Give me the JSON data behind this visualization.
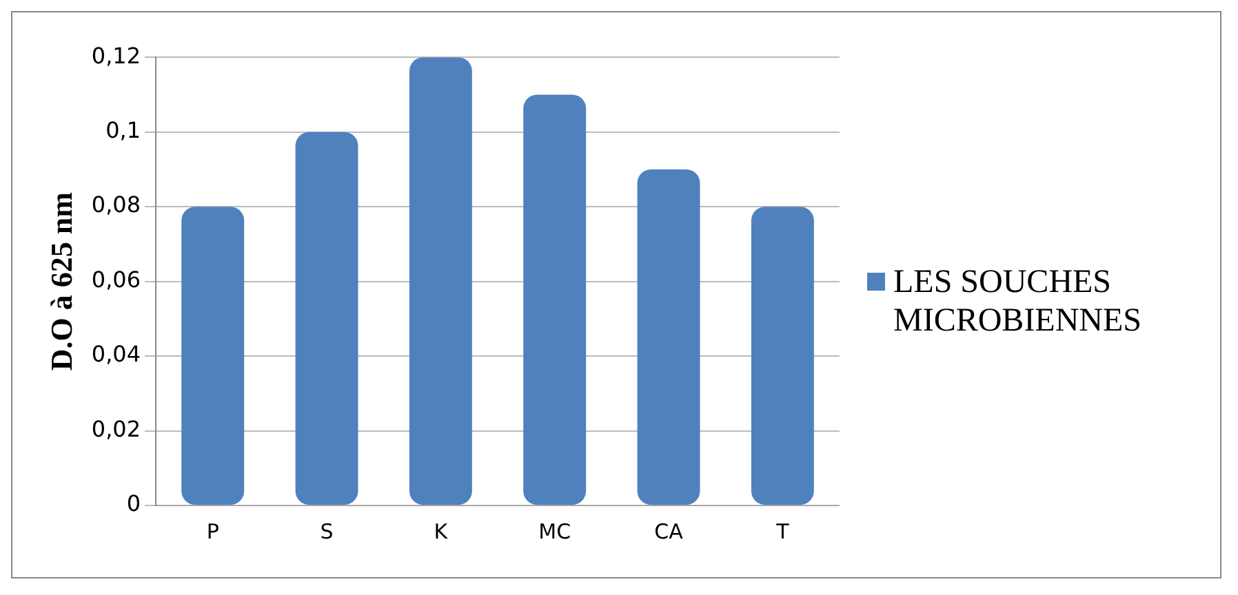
{
  "chart_data": {
    "type": "bar",
    "ylabel": "D.O à 625 nm",
    "categories": [
      "P",
      "S",
      "K",
      "MC",
      "CA",
      "T"
    ],
    "series": [
      {
        "name": "LES SOUCHES MICROBIENNES",
        "color": "#4f81bd",
        "values": [
          0.08,
          0.1,
          0.12,
          0.11,
          0.09,
          0.08
        ]
      }
    ],
    "ylim": [
      0,
      0.12
    ],
    "yticks": [
      0,
      {
        "value": 0.02,
        "label": "0,02"
      },
      {
        "value": 0.04,
        "label": "0,04"
      },
      {
        "value": 0.06,
        "label": "0,06"
      },
      {
        "value": 0.08,
        "label": "0,08"
      },
      {
        "value": 0.1,
        "label": "0,1"
      },
      {
        "value": 0.12,
        "label": "0,12"
      }
    ],
    "grid": "y",
    "legend": "right"
  }
}
